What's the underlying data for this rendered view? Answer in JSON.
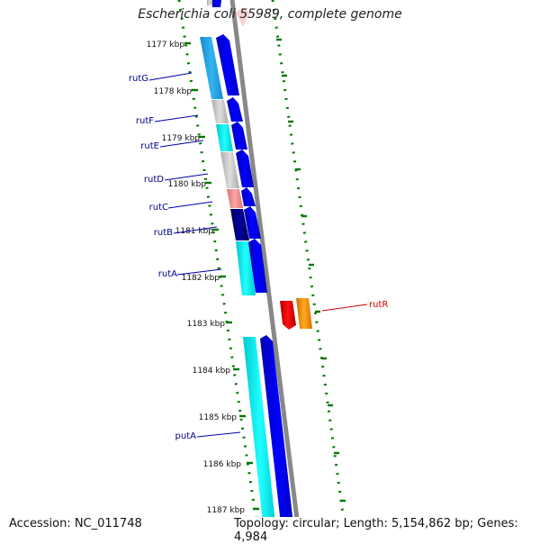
{
  "title": "Escherichia coli 55989, complete genome",
  "footer": {
    "accession": "Accession: NC_011748",
    "summary": "Topology: circular; Length: 5,154,862 bp; Genes: 4,984"
  },
  "scale_labels": [
    "1177 kbp",
    "1178 kbp",
    "1179 kbp",
    "1180 kbp",
    "1181 kbp",
    "1182 kbp",
    "1183 kbp",
    "1184 kbp",
    "1185 kbp",
    "1186 kbp",
    "1187 kbp"
  ],
  "genes": {
    "rutG": "rutG",
    "rutF": "rutF",
    "rutE": "rutE",
    "rutD": "rutD",
    "rutC": "rutC",
    "rutB": "rutB",
    "rutA": "rutA",
    "putA": "putA",
    "rutR": "rutR"
  },
  "colors": {
    "forward_cds": "#0000e0",
    "cog_cyan": "#00e5e5",
    "cog_sky": "#2aa6e6",
    "cog_gray": "#c8c8c8",
    "cog_pink": "#f09090",
    "cog_navy": "#000070",
    "reverse_red": "#e00000",
    "reverse_orange": "#ff9900",
    "label_blue": "#00008b",
    "label_red": "#cc0000",
    "tick_green": "#007700",
    "backbone": "#888888"
  }
}
